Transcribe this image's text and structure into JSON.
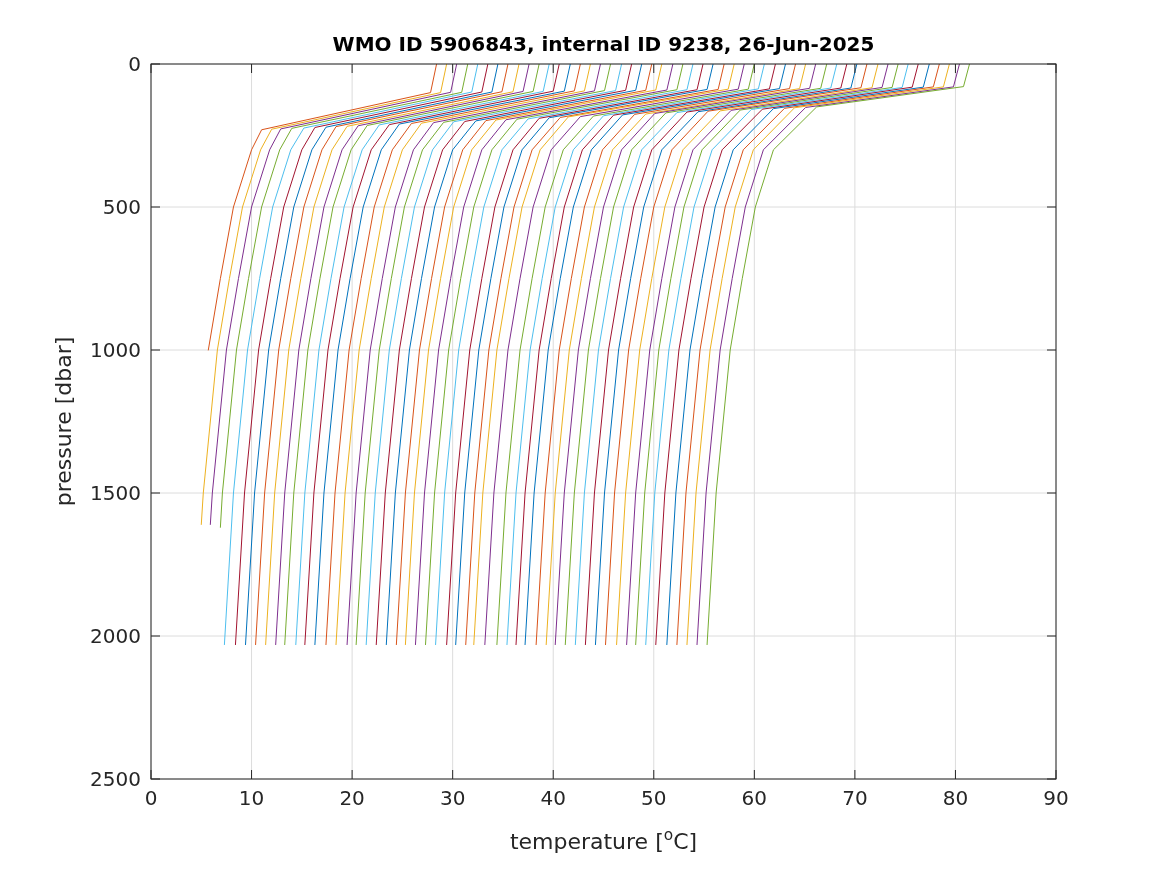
{
  "chart_data": {
    "type": "line",
    "title": "WMO ID 5906843, internal ID 9238, 26-Jun-2025",
    "xlabel": "temperature [$^{o}$C]",
    "ylabel": "pressure [dbar]",
    "xlim": [
      0,
      90
    ],
    "xticks": [
      0,
      10,
      20,
      30,
      40,
      50,
      60,
      70,
      80,
      90
    ],
    "ylim": [
      2500,
      0
    ],
    "yticks": [
      0,
      500,
      1000,
      1500,
      2000,
      2500
    ],
    "grid": true,
    "series": [
      {
        "color": "#d95319",
        "x": [
          28.4,
          27.8,
          11.0,
          10.0,
          8.2,
          6.9,
          5.7
        ],
        "values": [
          0,
          100,
          230,
          300,
          500,
          750,
          1000
        ]
      },
      {
        "color": "#edb120",
        "x": [
          29.4,
          28.8,
          12.0,
          10.9,
          9.1,
          7.8,
          6.6,
          5.2,
          5.0
        ],
        "values": [
          0,
          100,
          228,
          300,
          500,
          750,
          1000,
          1500,
          1610
        ]
      },
      {
        "color": "#7e2f8e",
        "x": [
          30.4,
          29.8,
          12.9,
          11.8,
          10.0,
          8.7,
          7.5,
          6.1,
          5.9
        ],
        "values": [
          0,
          99,
          227,
          300,
          500,
          750,
          1000,
          1500,
          1610
        ]
      },
      {
        "color": "#77ac30",
        "x": [
          31.5,
          30.9,
          14.0,
          12.8,
          11.0,
          9.7,
          8.5,
          7.1,
          6.9
        ],
        "values": [
          0,
          99,
          225,
          300,
          500,
          750,
          1000,
          1500,
          1620
        ]
      },
      {
        "color": "#4dbeee",
        "x": [
          32.5,
          31.9,
          15.2,
          13.9,
          12.1,
          10.8,
          9.6,
          8.2,
          7.3
        ],
        "values": [
          0,
          98,
          224,
          300,
          500,
          750,
          1000,
          1500,
          2030
        ]
      },
      {
        "color": "#a2142f",
        "x": [
          33.5,
          32.9,
          16.3,
          15.0,
          13.2,
          11.9,
          10.7,
          9.3,
          8.4
        ],
        "values": [
          0,
          98,
          222,
          300,
          500,
          750,
          1000,
          1500,
          2030
        ]
      },
      {
        "color": "#0072bd",
        "x": [
          34.5,
          33.9,
          17.4,
          16.0,
          14.2,
          12.9,
          11.7,
          10.3,
          9.4
        ],
        "values": [
          0,
          98,
          221,
          300,
          500,
          750,
          1000,
          1500,
          2030
        ]
      },
      {
        "color": "#d95319",
        "x": [
          35.5,
          34.9,
          18.4,
          17.0,
          15.2,
          13.9,
          12.7,
          11.3,
          10.4
        ],
        "values": [
          0,
          97,
          219,
          300,
          500,
          750,
          1000,
          1500,
          2030
        ]
      },
      {
        "color": "#edb120",
        "x": [
          36.6,
          36.0,
          19.5,
          18.0,
          16.2,
          14.9,
          13.7,
          12.3,
          11.4
        ],
        "values": [
          0,
          97,
          218,
          300,
          500,
          750,
          1000,
          1500,
          2030
        ]
      },
      {
        "color": "#7e2f8e",
        "x": [
          37.6,
          37.0,
          20.6,
          19.0,
          17.2,
          15.9,
          14.7,
          13.3,
          12.4
        ],
        "values": [
          0,
          96,
          216,
          300,
          500,
          750,
          1000,
          1500,
          2030
        ]
      },
      {
        "color": "#77ac30",
        "x": [
          38.6,
          38.0,
          21.5,
          19.9,
          18.1,
          16.8,
          15.6,
          14.2,
          13.3
        ],
        "values": [
          0,
          96,
          215,
          300,
          500,
          750,
          1000,
          1500,
          2030
        ]
      },
      {
        "color": "#4dbeee",
        "x": [
          39.6,
          39.0,
          22.7,
          21.0,
          19.2,
          17.9,
          16.7,
          15.3,
          14.4
        ],
        "values": [
          0,
          96,
          213,
          300,
          500,
          750,
          1000,
          1500,
          2030
        ]
      },
      {
        "color": "#a2142f",
        "x": [
          40.6,
          40.0,
          23.7,
          21.9,
          20.1,
          18.8,
          17.6,
          16.2,
          15.3
        ],
        "values": [
          0,
          95,
          212,
          300,
          500,
          750,
          1000,
          1500,
          2030
        ]
      },
      {
        "color": "#0072bd",
        "x": [
          41.7,
          41.1,
          24.7,
          22.9,
          21.1,
          19.8,
          18.6,
          17.2,
          16.3
        ],
        "values": [
          0,
          95,
          210,
          300,
          500,
          750,
          1000,
          1500,
          2030
        ]
      },
      {
        "color": "#d95319",
        "x": [
          42.7,
          42.1,
          25.9,
          24.0,
          22.2,
          20.9,
          19.7,
          18.3,
          17.4
        ],
        "values": [
          0,
          94,
          208,
          300,
          500,
          750,
          1000,
          1500,
          2030
        ]
      },
      {
        "color": "#edb120",
        "x": [
          43.7,
          43.1,
          26.9,
          25.0,
          23.2,
          21.9,
          20.7,
          19.3,
          18.4
        ],
        "values": [
          0,
          94,
          207,
          300,
          500,
          750,
          1000,
          1500,
          2030
        ]
      },
      {
        "color": "#7e2f8e",
        "x": [
          44.7,
          44.1,
          28.1,
          26.1,
          24.3,
          23.0,
          21.8,
          20.4,
          19.5
        ],
        "values": [
          0,
          94,
          205,
          300,
          500,
          750,
          1000,
          1500,
          2030
        ]
      },
      {
        "color": "#77ac30",
        "x": [
          45.7,
          45.1,
          29.1,
          27.0,
          25.2,
          23.9,
          22.7,
          21.3,
          20.4
        ],
        "values": [
          0,
          93,
          204,
          300,
          500,
          750,
          1000,
          1500,
          2030
        ]
      },
      {
        "color": "#4dbeee",
        "x": [
          46.8,
          46.2,
          30.1,
          28.0,
          26.2,
          24.9,
          23.7,
          22.3,
          21.4
        ],
        "values": [
          0,
          93,
          202,
          300,
          500,
          750,
          1000,
          1500,
          2030
        ]
      },
      {
        "color": "#a2142f",
        "x": [
          47.8,
          47.2,
          31.2,
          29.0,
          27.2,
          25.9,
          24.7,
          23.3,
          22.4
        ],
        "values": [
          0,
          92,
          201,
          300,
          500,
          750,
          1000,
          1500,
          2030
        ]
      },
      {
        "color": "#0072bd",
        "x": [
          48.8,
          48.2,
          32.3,
          30.0,
          28.2,
          26.9,
          25.7,
          24.3,
          23.4
        ],
        "values": [
          0,
          92,
          199,
          300,
          500,
          750,
          1000,
          1500,
          2030
        ]
      },
      {
        "color": "#d95319",
        "x": [
          49.8,
          49.2,
          33.3,
          31.0,
          29.2,
          27.9,
          26.7,
          25.3,
          24.4
        ],
        "values": [
          0,
          92,
          198,
          300,
          500,
          750,
          1000,
          1500,
          2030
        ]
      },
      {
        "color": "#edb120",
        "x": [
          50.8,
          50.2,
          34.3,
          31.9,
          30.1,
          28.8,
          27.6,
          26.2,
          25.3
        ],
        "values": [
          0,
          91,
          196,
          300,
          500,
          750,
          1000,
          1500,
          2030
        ]
      },
      {
        "color": "#7e2f8e",
        "x": [
          51.9,
          51.3,
          35.3,
          32.9,
          31.1,
          29.8,
          28.6,
          27.2,
          26.3
        ],
        "values": [
          0,
          91,
          195,
          300,
          500,
          750,
          1000,
          1500,
          2030
        ]
      },
      {
        "color": "#77ac30",
        "x": [
          52.9,
          52.3,
          36.4,
          33.9,
          32.1,
          30.8,
          29.6,
          28.2,
          27.3
        ],
        "values": [
          0,
          90,
          193,
          300,
          500,
          750,
          1000,
          1500,
          2030
        ]
      },
      {
        "color": "#4dbeee",
        "x": [
          53.9,
          53.3,
          37.5,
          34.9,
          33.1,
          31.8,
          30.6,
          29.2,
          28.3
        ],
        "values": [
          0,
          90,
          192,
          300,
          500,
          750,
          1000,
          1500,
          2030
        ]
      },
      {
        "color": "#a2142f",
        "x": [
          54.9,
          54.3,
          38.6,
          36.0,
          34.2,
          32.9,
          31.7,
          30.3,
          29.4
        ],
        "values": [
          0,
          90,
          190,
          300,
          500,
          750,
          1000,
          1500,
          2030
        ]
      },
      {
        "color": "#0072bd",
        "x": [
          55.9,
          55.3,
          39.6,
          36.9,
          35.1,
          33.8,
          32.6,
          31.2,
          30.3
        ],
        "values": [
          0,
          89,
          188,
          300,
          500,
          750,
          1000,
          1500,
          2030
        ]
      },
      {
        "color": "#d95319",
        "x": [
          57.0,
          56.4,
          40.7,
          37.9,
          36.1,
          34.8,
          33.6,
          32.2,
          31.3
        ],
        "values": [
          0,
          89,
          187,
          300,
          500,
          750,
          1000,
          1500,
          2030
        ]
      },
      {
        "color": "#edb120",
        "x": [
          58.0,
          57.4,
          41.5,
          38.7,
          36.9,
          35.6,
          34.4,
          33.0,
          32.1
        ],
        "values": [
          0,
          88,
          185,
          300,
          500,
          750,
          1000,
          1500,
          2030
        ]
      },
      {
        "color": "#7e2f8e",
        "x": [
          59.0,
          58.4,
          42.7,
          39.8,
          38.0,
          36.7,
          35.5,
          34.1,
          33.2
        ],
        "values": [
          0,
          88,
          184,
          300,
          500,
          750,
          1000,
          1500,
          2030
        ]
      },
      {
        "color": "#77ac30",
        "x": [
          60.0,
          59.4,
          44.0,
          41.0,
          39.2,
          37.9,
          36.7,
          35.3,
          34.4
        ],
        "values": [
          0,
          88,
          182,
          300,
          500,
          750,
          1000,
          1500,
          2030
        ]
      },
      {
        "color": "#4dbeee",
        "x": [
          61.0,
          60.4,
          45.0,
          42.0,
          40.2,
          38.9,
          37.7,
          36.3,
          35.4
        ],
        "values": [
          0,
          87,
          181,
          300,
          500,
          750,
          1000,
          1500,
          2030
        ]
      },
      {
        "color": "#a2142f",
        "x": [
          62.1,
          61.5,
          46.0,
          42.9,
          41.1,
          39.8,
          38.6,
          37.2,
          36.3
        ],
        "values": [
          0,
          87,
          179,
          300,
          500,
          750,
          1000,
          1500,
          2030
        ]
      },
      {
        "color": "#0072bd",
        "x": [
          63.1,
          62.5,
          46.9,
          43.8,
          42.0,
          40.7,
          39.5,
          38.1,
          37.2
        ],
        "values": [
          0,
          86,
          178,
          300,
          500,
          750,
          1000,
          1500,
          2030
        ]
      },
      {
        "color": "#d95319",
        "x": [
          64.1,
          63.5,
          48.1,
          44.9,
          43.1,
          41.8,
          40.6,
          39.2,
          38.3
        ],
        "values": [
          0,
          86,
          176,
          300,
          500,
          750,
          1000,
          1500,
          2030
        ]
      },
      {
        "color": "#edb120",
        "x": [
          65.1,
          64.5,
          49.2,
          45.9,
          44.1,
          42.8,
          41.6,
          40.2,
          39.3
        ],
        "values": [
          0,
          86,
          175,
          300,
          500,
          750,
          1000,
          1500,
          2030
        ]
      },
      {
        "color": "#7e2f8e",
        "x": [
          66.1,
          65.5,
          50.1,
          46.8,
          45.0,
          43.7,
          42.5,
          41.1,
          40.2
        ],
        "values": [
          0,
          85,
          173,
          300,
          500,
          750,
          1000,
          1500,
          2030
        ]
      },
      {
        "color": "#77ac30",
        "x": [
          67.2,
          66.6,
          51.2,
          47.8,
          46.0,
          44.7,
          43.5,
          42.1,
          41.2
        ],
        "values": [
          0,
          85,
          171,
          300,
          500,
          750,
          1000,
          1500,
          2030
        ]
      },
      {
        "color": "#4dbeee",
        "x": [
          68.2,
          67.6,
          52.3,
          48.8,
          47.0,
          45.7,
          44.5,
          43.1,
          42.2
        ],
        "values": [
          0,
          84,
          170,
          300,
          500,
          750,
          1000,
          1500,
          2030
        ]
      },
      {
        "color": "#a2142f",
        "x": [
          69.2,
          68.6,
          53.3,
          49.8,
          48.0,
          46.7,
          45.5,
          44.1,
          43.2
        ],
        "values": [
          0,
          84,
          168,
          300,
          500,
          750,
          1000,
          1500,
          2030
        ]
      },
      {
        "color": "#0072bd",
        "x": [
          70.2,
          69.6,
          54.4,
          50.8,
          49.0,
          47.7,
          46.5,
          45.1,
          44.2
        ],
        "values": [
          0,
          84,
          167,
          300,
          500,
          750,
          1000,
          1500,
          2030
        ]
      },
      {
        "color": "#d95319",
        "x": [
          71.2,
          70.6,
          55.4,
          51.8,
          50.0,
          48.7,
          47.5,
          46.1,
          45.2
        ],
        "values": [
          0,
          83,
          165,
          300,
          500,
          750,
          1000,
          1500,
          2030
        ]
      },
      {
        "color": "#edb120",
        "x": [
          72.3,
          71.7,
          56.6,
          52.9,
          51.1,
          49.8,
          48.6,
          47.2,
          46.3
        ],
        "values": [
          0,
          83,
          164,
          300,
          500,
          750,
          1000,
          1500,
          2030
        ]
      },
      {
        "color": "#7e2f8e",
        "x": [
          73.3,
          72.7,
          57.7,
          53.9,
          52.1,
          50.8,
          49.6,
          48.2,
          47.3
        ],
        "values": [
          0,
          82,
          162,
          300,
          500,
          750,
          1000,
          1500,
          2030
        ]
      },
      {
        "color": "#77ac30",
        "x": [
          74.3,
          73.7,
          58.6,
          54.8,
          53.0,
          51.7,
          50.5,
          49.1,
          48.2
        ],
        "values": [
          0,
          82,
          161,
          300,
          500,
          750,
          1000,
          1500,
          2030
        ]
      },
      {
        "color": "#4dbeee",
        "x": [
          75.3,
          74.7,
          59.7,
          55.8,
          54.0,
          52.7,
          51.5,
          50.1,
          49.2
        ],
        "values": [
          0,
          82,
          159,
          300,
          500,
          750,
          1000,
          1500,
          2030
        ]
      },
      {
        "color": "#a2142f",
        "x": [
          76.3,
          75.7,
          60.8,
          56.8,
          55.0,
          53.7,
          52.5,
          51.1,
          50.2
        ],
        "values": [
          0,
          81,
          158,
          300,
          500,
          750,
          1000,
          1500,
          2030
        ]
      },
      {
        "color": "#0072bd",
        "x": [
          77.4,
          76.8,
          61.9,
          57.9,
          56.1,
          54.8,
          53.6,
          52.2,
          51.3
        ],
        "values": [
          0,
          81,
          156,
          300,
          500,
          750,
          1000,
          1500,
          2030
        ]
      },
      {
        "color": "#d95319",
        "x": [
          78.4,
          77.8,
          63.0,
          58.9,
          57.1,
          55.8,
          54.6,
          53.2,
          52.3
        ],
        "values": [
          0,
          80,
          155,
          300,
          500,
          750,
          1000,
          1500,
          2030
        ]
      },
      {
        "color": "#edb120",
        "x": [
          79.4,
          78.8,
          64.0,
          59.9,
          58.1,
          56.8,
          55.6,
          54.2,
          53.3
        ],
        "values": [
          0,
          80,
          153,
          300,
          500,
          750,
          1000,
          1500,
          2030
        ]
      },
      {
        "color": "#7e2f8e",
        "x": [
          80.4,
          79.8,
          65.1,
          60.9,
          59.1,
          57.8,
          56.6,
          55.2,
          54.3
        ],
        "values": [
          0,
          80,
          152,
          300,
          500,
          750,
          1000,
          1500,
          2030
        ]
      },
      {
        "color": "#77ac30",
        "x": [
          81.4,
          80.8,
          66.2,
          61.9,
          60.1,
          58.8,
          57.6,
          56.2,
          55.3
        ],
        "values": [
          0,
          79,
          150,
          300,
          500,
          750,
          1000,
          1500,
          2030
        ]
      }
    ]
  }
}
